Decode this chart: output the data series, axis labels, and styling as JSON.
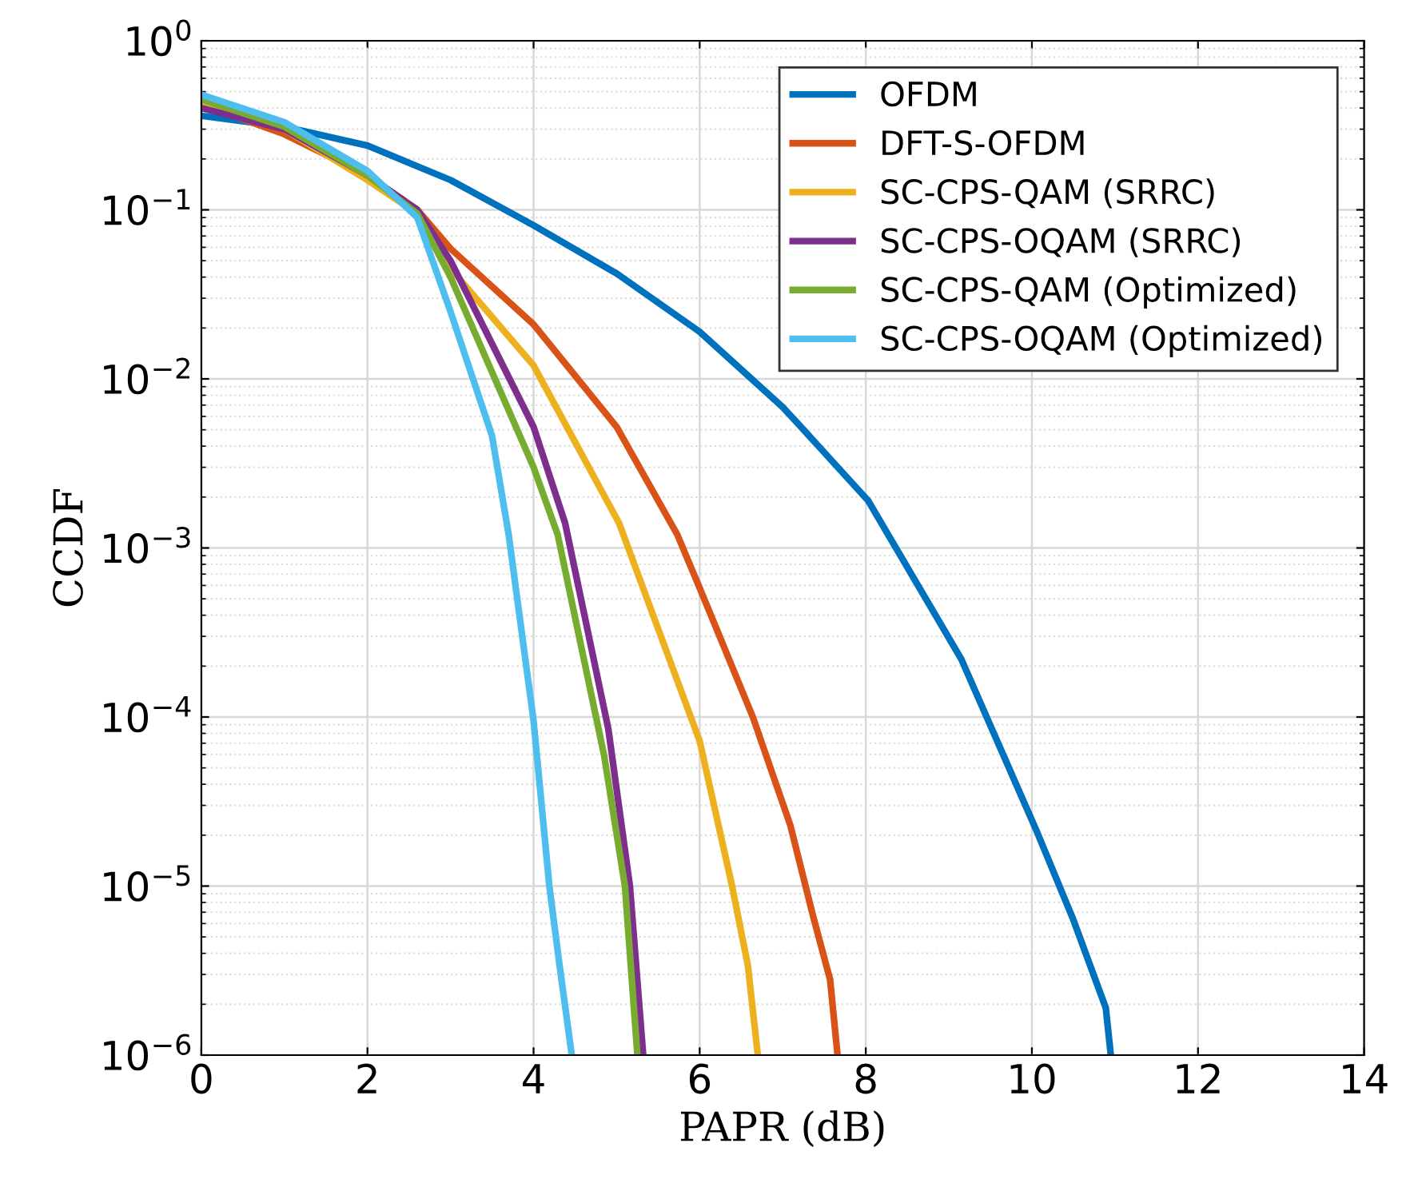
{
  "chart_data": {
    "type": "line",
    "xlabel": "PAPR (dB)",
    "ylabel": "CCDF",
    "log": "y",
    "grid": true,
    "legend": "top right",
    "line_style": "solid",
    "marker": "none",
    "xlim": [
      0,
      14
    ],
    "xticks": [
      0,
      2,
      4,
      6,
      8,
      10,
      12,
      14
    ],
    "ylim": [
      1e-06,
      1
    ],
    "yticks": [
      {
        "value": 1e-06,
        "label": "10$^{−6}$"
      },
      {
        "value": 1e-05,
        "label": "10$^{−5}$"
      },
      {
        "value": 0.0001,
        "label": "10$^{−4}$"
      },
      {
        "value": 0.001,
        "label": "10$^{−3}$"
      },
      {
        "value": 0.01,
        "label": "10$^{−2}$"
      },
      {
        "value": 0.1,
        "label": "10$^{−1}$"
      },
      {
        "value": 1,
        "label": "10$^{0}$"
      }
    ],
    "series": [
      {
        "name": "OFDM",
        "color": "#0072bd",
        "x": [
          0,
          1,
          2,
          3,
          4,
          5,
          6,
          7,
          7.22,
          8.03,
          9.15,
          10.06,
          10.5,
          10.89,
          10.95
        ],
        "values": [
          0.36,
          0.31,
          0.24,
          0.15,
          0.081,
          0.042,
          0.019,
          0.0068,
          0.0052,
          0.0019,
          0.00022,
          2.1e-05,
          6.3e-06,
          1.9e-06,
          1e-06
        ]
      },
      {
        "name": "DFT-S-OFDM",
        "color": "#d95319",
        "x": [
          0,
          1,
          2,
          2.6,
          3,
          4,
          5,
          5.73,
          6,
          6.64,
          7.09,
          7.37,
          7.57,
          7.66
        ],
        "values": [
          0.42,
          0.28,
          0.16,
          0.1,
          0.059,
          0.021,
          0.0052,
          0.0012,
          0.00058,
          0.0001,
          2.3e-05,
          6.5e-06,
          2.8e-06,
          1e-06
        ]
      },
      {
        "name": "SC-CPS-QAM (SRRC)",
        "color": "#edb120",
        "x": [
          0,
          1,
          2,
          2.6,
          3,
          4,
          5.03,
          6,
          6.39,
          6.58,
          6.7
        ],
        "values": [
          0.44,
          0.3,
          0.15,
          0.095,
          0.045,
          0.012,
          0.0014,
          7.2e-05,
          1e-05,
          3.4e-06,
          1e-06
        ]
      },
      {
        "name": "SC-CPS-OQAM (SRRC)",
        "color": "#7e2f8e",
        "x": [
          0,
          1,
          2,
          2.6,
          3,
          4,
          4.38,
          4.9,
          5.16,
          5.32
        ],
        "values": [
          0.4,
          0.3,
          0.16,
          0.1,
          0.05,
          0.0052,
          0.0014,
          8.5e-05,
          1e-05,
          1e-06
        ]
      },
      {
        "name": "SC-CPS-QAM (Optimized)",
        "color": "#77ac30",
        "x": [
          0,
          1,
          2,
          2.6,
          3,
          4,
          4.29,
          4.85,
          5.1,
          5.25
        ],
        "values": [
          0.45,
          0.31,
          0.16,
          0.095,
          0.04,
          0.003,
          0.0012,
          5.9e-05,
          1e-05,
          1e-06
        ]
      },
      {
        "name": "SC-CPS-OQAM (Optimized)",
        "color": "#4dbeee",
        "x": [
          0,
          1,
          2,
          2.6,
          3,
          3.5,
          3.7,
          4.0,
          4.19,
          4.32,
          4.46
        ],
        "values": [
          0.48,
          0.33,
          0.17,
          0.09,
          0.025,
          0.0046,
          0.0012,
          9.5e-05,
          1e-05,
          3.2e-06,
          1e-06
        ]
      }
    ]
  }
}
